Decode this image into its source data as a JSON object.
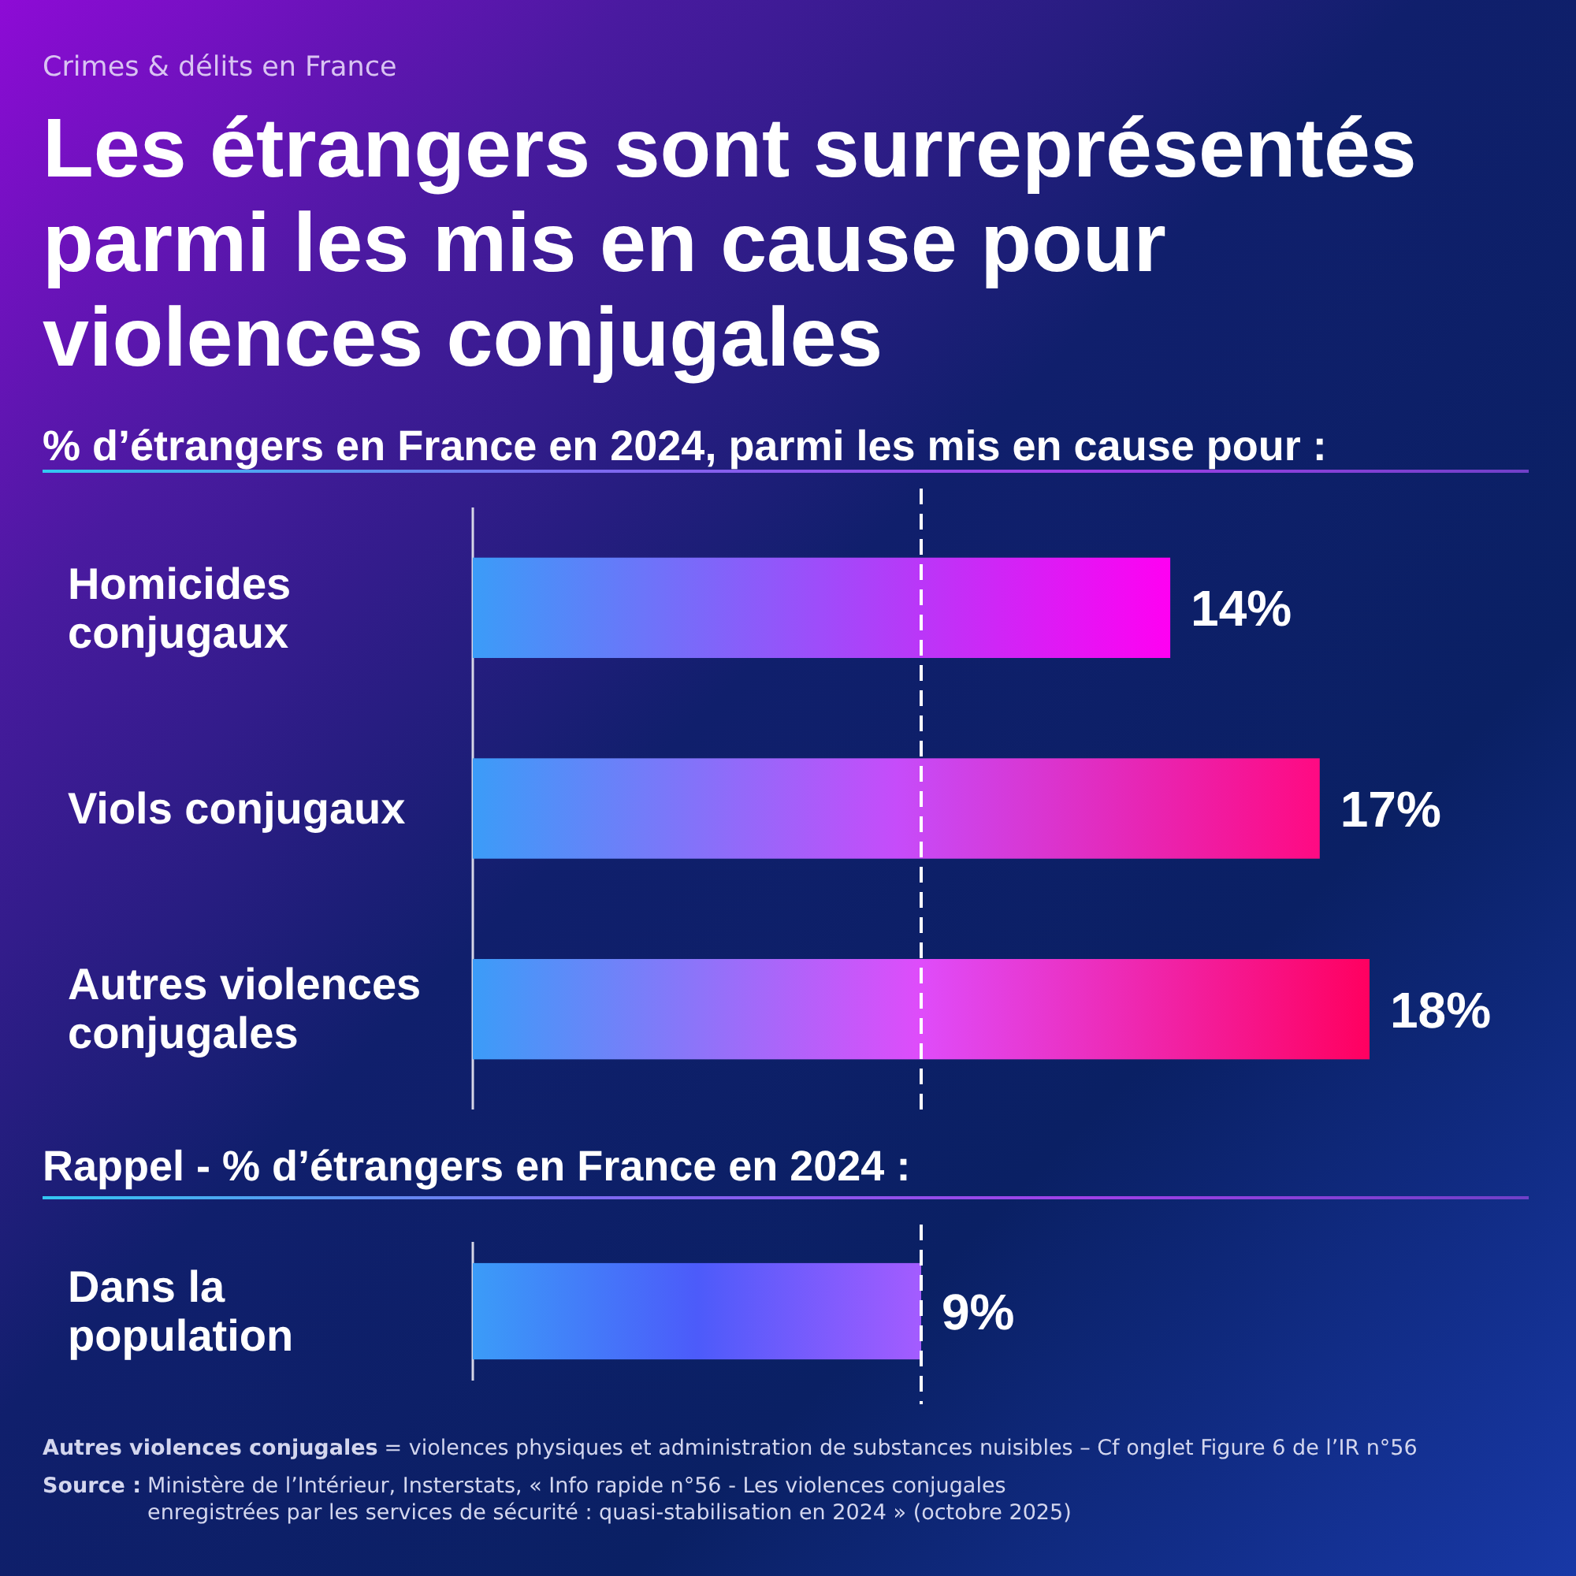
{
  "chart_data": {
    "type": "bar",
    "orientation": "horizontal",
    "title": "Les étrangers sont surreprésentés parmi les mis en cause pour violences conjugales",
    "subtitle": "% d’étrangers en France en 2024, parmi les mis en cause pour :",
    "annotations": [
      "Crimes & délits en France",
      "Rappel - % d’étrangers en France en 2024 :",
      "Autres violences conjugales",
      "= violences physiques et administration de substances nuisibles – Cf onglet Figure 6 de l’IR n°56",
      "Source :",
      "Ministère de l’Intérieur, Insterstats, « Info rapide n°56 - Les violences conjugales enregistrées par les services de sécurité : quasi-stabilisation en 2024 » (octobre 2025)"
    ],
    "categories": [
      "Homicides conjugaux",
      "Viols conjugaux",
      "Autres violences conjugales",
      "Dans la population"
    ],
    "values": [
      14,
      17,
      18,
      9
    ],
    "value_labels": [
      "14%",
      "17%",
      "18%",
      "9%"
    ],
    "colors": [
      "#ff00f2",
      "#ff0a82",
      "#ff0060",
      "#a45cff"
    ],
    "tick_labels": "y",
    "ref_lines": [
      {
        "axis": "x",
        "value": 9,
        "color": "#ffffff",
        "line_style": "dashed"
      }
    ]
  }
}
